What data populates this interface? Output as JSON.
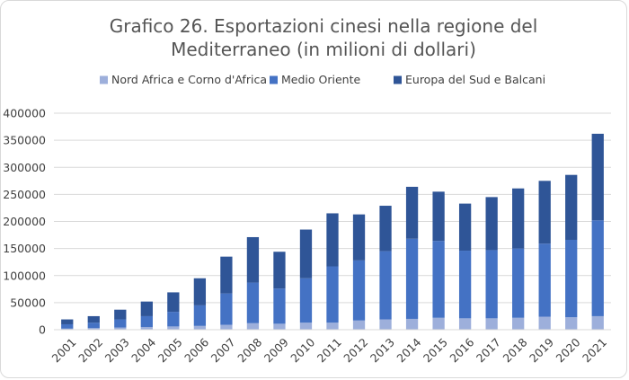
{
  "chart_data": {
    "type": "bar",
    "stacked": true,
    "title_lines": [
      "Grafico 26. Esportazioni cinesi nella regione del",
      "Mediterraneo (in milioni di dollari)"
    ],
    "xlabel": "",
    "ylabel": "",
    "ylim": [
      0,
      400000
    ],
    "yticks": [
      0,
      50000,
      100000,
      150000,
      200000,
      250000,
      300000,
      350000,
      400000
    ],
    "ytick_labels": [
      "0",
      "50000",
      "100000",
      "150000",
      "200000",
      "250000",
      "300000",
      "350000",
      "400000"
    ],
    "grid": true,
    "legend_position": "top",
    "categories": [
      "2001",
      "2002",
      "2003",
      "2004",
      "2005",
      "2006",
      "2007",
      "2008",
      "2009",
      "2010",
      "2011",
      "2012",
      "2013",
      "2014",
      "2015",
      "2016",
      "2017",
      "2018",
      "2019",
      "2020",
      "2021"
    ],
    "series": [
      {
        "name": "Nord Africa e Corno d'Africa",
        "color": "#9dafdb",
        "values": [
          2000,
          3000,
          4000,
          5000,
          6000,
          7000,
          9000,
          12000,
          11000,
          13000,
          13000,
          17000,
          19000,
          20000,
          22000,
          21000,
          21000,
          22000,
          24000,
          23000,
          25000
        ]
      },
      {
        "name": "Medio Oriente",
        "color": "#4472c4",
        "values": [
          8000,
          10000,
          15000,
          20000,
          27000,
          38000,
          58000,
          75000,
          65000,
          82000,
          104000,
          111000,
          126000,
          148000,
          142000,
          125000,
          126000,
          128000,
          135000,
          143000,
          177000
        ]
      },
      {
        "name": "Europa del Sud e Balcani",
        "color": "#2f5597",
        "values": [
          9000,
          12000,
          18000,
          27000,
          36000,
          50000,
          68000,
          84000,
          68000,
          90000,
          98000,
          85000,
          84000,
          96000,
          91000,
          87000,
          98000,
          111000,
          116000,
          120000,
          160000
        ]
      }
    ]
  }
}
